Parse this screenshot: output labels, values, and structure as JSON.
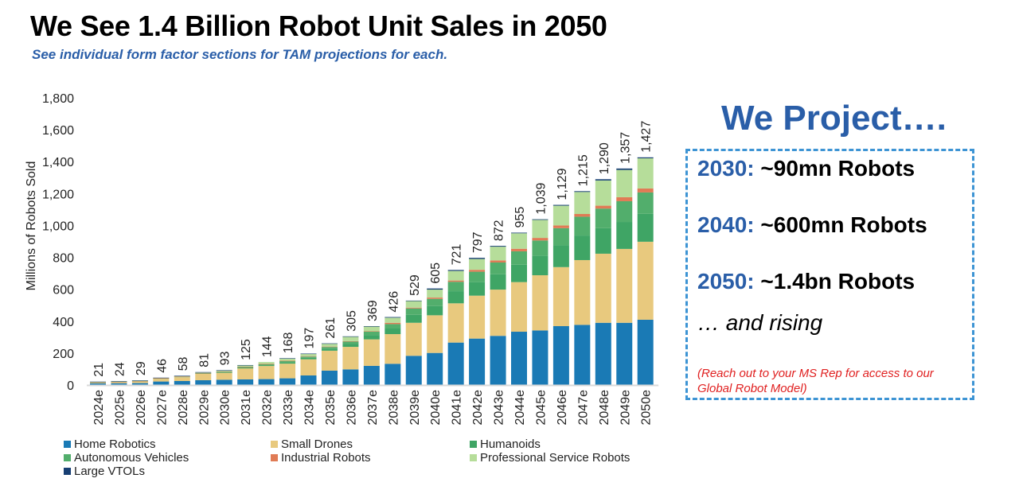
{
  "title": "We See 1.4 Billion Robot Unit Sales in 2050",
  "subtitle": "See individual form factor sections for TAM projections for each.",
  "projection": {
    "heading": "We Project….",
    "lines": [
      {
        "year": "2030:",
        "text": " ~90mn Robots"
      },
      {
        "year": "2040:",
        "text": " ~600mn Robots"
      },
      {
        "year": "2050:",
        "text": " ~1.4bn Robots"
      }
    ],
    "rising": "… and rising",
    "note": "(Reach out to your MS Rep for access to our Global Robot Model)"
  },
  "chart_data": {
    "type": "bar",
    "stacked": true,
    "title": "",
    "xlabel": "",
    "ylabel": "Millions of Robots Sold",
    "ylim": [
      0,
      1800
    ],
    "yticks": [
      0,
      200,
      400,
      600,
      800,
      1000,
      1200,
      1400,
      1600,
      1800
    ],
    "ytick_labels": [
      "0",
      "200",
      "400",
      "600",
      "800",
      "1,000",
      "1,200",
      "1,400",
      "1,600",
      "1,800"
    ],
    "grid": false,
    "legend_position": "bottom",
    "categories": [
      "2024e",
      "2025e",
      "2026e",
      "2027e",
      "2028e",
      "2029e",
      "2030e",
      "2031e",
      "2032e",
      "2033e",
      "2034e",
      "2035e",
      "2036e",
      "2037e",
      "2038e",
      "2039e",
      "2040e",
      "2041e",
      "2042e",
      "2043e",
      "2044e",
      "2045e",
      "2046e",
      "2047e",
      "2048e",
      "2049e",
      "2050e"
    ],
    "totals": [
      21,
      24,
      29,
      46,
      58,
      81,
      93,
      125,
      144,
      168,
      197,
      261,
      305,
      369,
      426,
      529,
      605,
      721,
      797,
      872,
      955,
      1039,
      1129,
      1215,
      1290,
      1357,
      1427
    ],
    "total_labels": [
      "21",
      "24",
      "29",
      "46",
      "58",
      "81",
      "93",
      "125",
      "144",
      "168",
      "197",
      "261",
      "305",
      "369",
      "426",
      "529",
      "605",
      "721",
      "797",
      "872",
      "955",
      "1,039",
      "1,129",
      "1,215",
      "1,290",
      "1,357",
      "1,427"
    ],
    "series": [
      {
        "name": "Home Robotics",
        "color": "#1a7ab5",
        "values": [
          10,
          11,
          12,
          22,
          25,
          30,
          33,
          35,
          37,
          42,
          60,
          90,
          98,
          120,
          133,
          183,
          201,
          266,
          291,
          308,
          334,
          342,
          369,
          377,
          390,
          390,
          409
        ]
      },
      {
        "name": "Small Drones",
        "color": "#e8c97e",
        "values": [
          6,
          7,
          10,
          17,
          24,
          40,
          45,
          70,
          82,
          92,
          101,
          125,
          141,
          166,
          186,
          207,
          236,
          246,
          269,
          290,
          311,
          346,
          370,
          406,
          433,
          463,
          489
        ]
      },
      {
        "name": "Humanoids",
        "color": "#3fa565",
        "values": [
          0,
          0,
          0,
          0,
          0,
          0,
          1,
          2,
          3,
          6,
          10,
          13,
          18,
          26,
          35,
          50,
          58,
          76,
          85,
          96,
          109,
          123,
          138,
          154,
          160,
          169,
          175
        ]
      },
      {
        "name": "Autonomous Vehicles",
        "color": "#52ae6c",
        "values": [
          2,
          2,
          3,
          3,
          4,
          5,
          5,
          6,
          8,
          10,
          7,
          10,
          15,
          22,
          28,
          40,
          45,
          59,
          65,
          74,
          84,
          95,
          106,
          118,
          123,
          130,
          134
        ]
      },
      {
        "name": "Industrial Robots",
        "color": "#e07b55",
        "values": [
          1,
          1,
          1,
          1,
          1,
          1,
          2,
          2,
          2,
          2,
          3,
          3,
          3,
          3,
          8,
          5,
          8,
          8,
          12,
          13,
          16,
          16,
          17,
          17,
          18,
          25,
          25
        ]
      },
      {
        "name": "Professional Service Robots",
        "color": "#b6dd9a",
        "values": [
          1,
          2,
          2,
          2,
          3,
          4,
          6,
          9,
          12,
          14,
          14,
          18,
          28,
          30,
          32,
          42,
          50,
          60,
          68,
          86,
          97,
          113,
          124,
          138,
          158,
          171,
          189
        ]
      },
      {
        "name": "Large VTOLs",
        "color": "#173f73",
        "values": [
          1,
          1,
          1,
          1,
          1,
          1,
          1,
          1,
          0,
          2,
          2,
          2,
          2,
          2,
          4,
          2,
          7,
          6,
          7,
          5,
          4,
          4,
          5,
          5,
          8,
          9,
          6
        ]
      }
    ]
  }
}
